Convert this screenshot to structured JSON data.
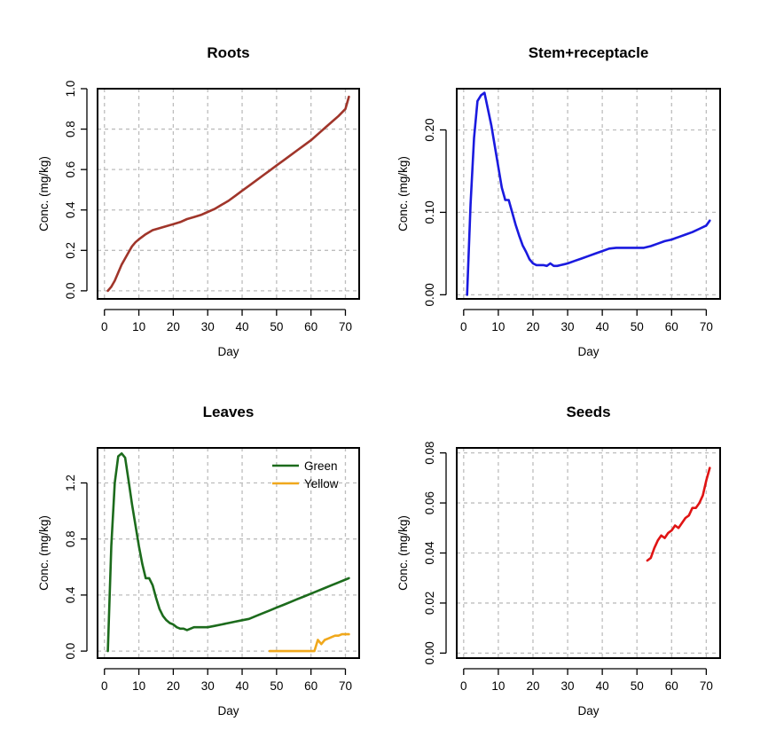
{
  "chart_data": [
    {
      "type": "line",
      "title": "Roots",
      "xlabel": "Day",
      "ylabel": "Conc. (mg/kg)",
      "xlim": [
        -2,
        74
      ],
      "ylim": [
        -0.04,
        1.0
      ],
      "xticks": [
        "0",
        "10",
        "20",
        "30",
        "40",
        "50",
        "60",
        "70"
      ],
      "yticks": [
        "0.0",
        "0.2",
        "0.4",
        "0.6",
        "0.8",
        "1.0"
      ],
      "grid": true,
      "series": [
        {
          "color": "#a0352a",
          "x": [
            1,
            2,
            3,
            4,
            5,
            6,
            7,
            8,
            9,
            10,
            12,
            14,
            16,
            18,
            20,
            22,
            24,
            26,
            28,
            30,
            32,
            34,
            36,
            38,
            40,
            42,
            44,
            46,
            48,
            50,
            52,
            54,
            56,
            58,
            60,
            62,
            64,
            66,
            68,
            70,
            71
          ],
          "y": [
            0.0,
            0.02,
            0.05,
            0.09,
            0.13,
            0.16,
            0.19,
            0.22,
            0.24,
            0.255,
            0.28,
            0.3,
            0.31,
            0.32,
            0.33,
            0.34,
            0.355,
            0.365,
            0.375,
            0.39,
            0.405,
            0.425,
            0.445,
            0.47,
            0.495,
            0.52,
            0.545,
            0.57,
            0.595,
            0.62,
            0.645,
            0.67,
            0.695,
            0.72,
            0.745,
            0.775,
            0.805,
            0.835,
            0.865,
            0.9,
            0.96
          ]
        }
      ]
    },
    {
      "type": "line",
      "title": "Stem+receptacle",
      "xlabel": "Day",
      "ylabel": "Conc. (mg/kg)",
      "xlim": [
        -2,
        74
      ],
      "ylim": [
        -0.005,
        0.25
      ],
      "xticks": [
        "0",
        "10",
        "20",
        "30",
        "40",
        "50",
        "60",
        "70"
      ],
      "yticks": [
        "0.00",
        "0.10",
        "0.20"
      ],
      "grid": true,
      "series": [
        {
          "color": "#1a1adf",
          "x": [
            1,
            2,
            3,
            4,
            5,
            6,
            7,
            8,
            9,
            10,
            11,
            12,
            13,
            14,
            15,
            16,
            17,
            18,
            19,
            20,
            21,
            22,
            23,
            24,
            25,
            26,
            27,
            28,
            30,
            32,
            34,
            36,
            38,
            40,
            42,
            44,
            46,
            48,
            50,
            52,
            54,
            56,
            58,
            60,
            62,
            64,
            66,
            68,
            70,
            71
          ],
          "y": [
            0.0,
            0.11,
            0.19,
            0.235,
            0.242,
            0.245,
            0.225,
            0.205,
            0.18,
            0.155,
            0.13,
            0.115,
            0.115,
            0.1,
            0.085,
            0.072,
            0.06,
            0.052,
            0.043,
            0.038,
            0.036,
            0.036,
            0.036,
            0.035,
            0.038,
            0.035,
            0.035,
            0.036,
            0.038,
            0.041,
            0.044,
            0.047,
            0.05,
            0.053,
            0.056,
            0.057,
            0.057,
            0.057,
            0.057,
            0.057,
            0.059,
            0.062,
            0.065,
            0.067,
            0.07,
            0.073,
            0.076,
            0.08,
            0.084,
            0.09
          ]
        }
      ]
    },
    {
      "type": "line",
      "title": "Leaves",
      "xlabel": "Day",
      "ylabel": "Conc. (mg/kg)",
      "xlim": [
        -2,
        74
      ],
      "ylim": [
        -0.05,
        1.45
      ],
      "xticks": [
        "0",
        "10",
        "20",
        "30",
        "40",
        "50",
        "60",
        "70"
      ],
      "yticks": [
        "0.0",
        "0.4",
        "0.8",
        "1.2"
      ],
      "grid": true,
      "legend": "top-right",
      "series": [
        {
          "name": "Green",
          "color": "#1c6b1c",
          "x": [
            1,
            2,
            3,
            4,
            5,
            6,
            7,
            8,
            9,
            10,
            11,
            12,
            13,
            14,
            15,
            16,
            17,
            18,
            19,
            20,
            21,
            22,
            23,
            24,
            25,
            26,
            27,
            28,
            30,
            32,
            34,
            36,
            38,
            40,
            42,
            44,
            46,
            48,
            50,
            52,
            54,
            56,
            58,
            60,
            62,
            64,
            66,
            68,
            70,
            71
          ],
          "y": [
            0.0,
            0.75,
            1.2,
            1.39,
            1.41,
            1.38,
            1.22,
            1.05,
            0.9,
            0.75,
            0.62,
            0.52,
            0.52,
            0.47,
            0.38,
            0.3,
            0.25,
            0.22,
            0.2,
            0.19,
            0.17,
            0.16,
            0.16,
            0.15,
            0.16,
            0.17,
            0.17,
            0.17,
            0.17,
            0.18,
            0.19,
            0.2,
            0.21,
            0.22,
            0.23,
            0.25,
            0.27,
            0.29,
            0.31,
            0.33,
            0.35,
            0.37,
            0.39,
            0.41,
            0.43,
            0.45,
            0.47,
            0.49,
            0.51,
            0.52
          ]
        },
        {
          "name": "Yellow",
          "color": "#f0a81c",
          "x": [
            48,
            50,
            52,
            54,
            56,
            58,
            60,
            61,
            62,
            63,
            64,
            65,
            66,
            67,
            68,
            69,
            70,
            71
          ],
          "y": [
            0.0,
            0.0,
            0.0,
            0.0,
            0.0,
            0.0,
            0.0,
            0.0,
            0.08,
            0.05,
            0.08,
            0.09,
            0.1,
            0.11,
            0.11,
            0.12,
            0.12,
            0.12
          ]
        }
      ]
    },
    {
      "type": "line",
      "title": "Seeds",
      "xlabel": "Day",
      "ylabel": "Conc. (mg/kg)",
      "xlim": [
        -2,
        74
      ],
      "ylim": [
        -0.002,
        0.082
      ],
      "xticks": [
        "0",
        "10",
        "20",
        "30",
        "40",
        "50",
        "60",
        "70"
      ],
      "yticks": [
        "0.00",
        "0.02",
        "0.04",
        "0.06",
        "0.08"
      ],
      "grid": true,
      "series": [
        {
          "color": "#e01414",
          "x": [
            53,
            54,
            55,
            56,
            57,
            58,
            59,
            60,
            61,
            62,
            63,
            64,
            65,
            66,
            67,
            68,
            69,
            70,
            71
          ],
          "y": [
            0.037,
            0.038,
            0.042,
            0.045,
            0.047,
            0.046,
            0.048,
            0.049,
            0.051,
            0.05,
            0.052,
            0.054,
            0.055,
            0.058,
            0.058,
            0.06,
            0.063,
            0.069,
            0.074
          ]
        }
      ]
    }
  ]
}
